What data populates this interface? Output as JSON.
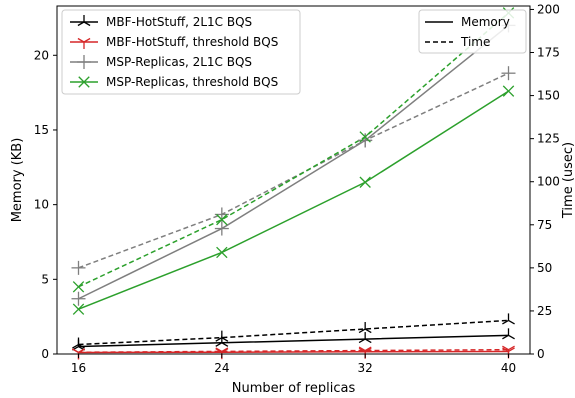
{
  "chart_data": {
    "type": "line",
    "x": [
      16,
      24,
      32,
      40
    ],
    "xlabel": "Number of replicas",
    "ylabel_left": "Memory (KB)",
    "ylabel_right": "Time (usec)",
    "ylim_left": [
      0,
      23.3
    ],
    "ylim_right": [
      0,
      202
    ],
    "yticks_left": [
      0,
      5,
      10,
      15,
      20
    ],
    "yticks_right": [
      0,
      25,
      50,
      75,
      100,
      125,
      150,
      175,
      200
    ],
    "xticks": [
      16,
      24,
      32,
      40
    ],
    "grid": false,
    "legend_series_position": "top-left",
    "legend_style_position": "top-right",
    "series": [
      {
        "name": "MBF-HotStuff, 2L1C BQS",
        "color": "#000000",
        "marker": "tri",
        "memory_kb": [
          0.5,
          0.75,
          1.0,
          1.25
        ],
        "time_usec": [
          5.5,
          9.5,
          14.5,
          19.5
        ]
      },
      {
        "name": "MBF-HotStuff, threshold BQS",
        "color": "#d62728",
        "marker": "tri_down",
        "memory_kb": [
          0.1,
          0.12,
          0.15,
          0.17
        ],
        "time_usec": [
          1.0,
          1.5,
          2.0,
          2.5
        ]
      },
      {
        "name": "MSP-Replicas, 2L1C BQS",
        "color": "#7f7f7f",
        "marker": "plus",
        "memory_kb": [
          3.7,
          8.4,
          14.3,
          22.0
        ],
        "time_usec": [
          50,
          81,
          124,
          163
        ]
      },
      {
        "name": "MSP-Replicas, threshold BQS",
        "color": "#2ca02c",
        "marker": "x",
        "memory_kb": [
          3.0,
          6.8,
          11.5,
          17.6
        ],
        "time_usec": [
          39,
          78,
          126,
          198
        ]
      }
    ],
    "style_legend": [
      {
        "label": "Memory",
        "dash": "solid"
      },
      {
        "label": "Time",
        "dash": "dashed"
      }
    ]
  }
}
